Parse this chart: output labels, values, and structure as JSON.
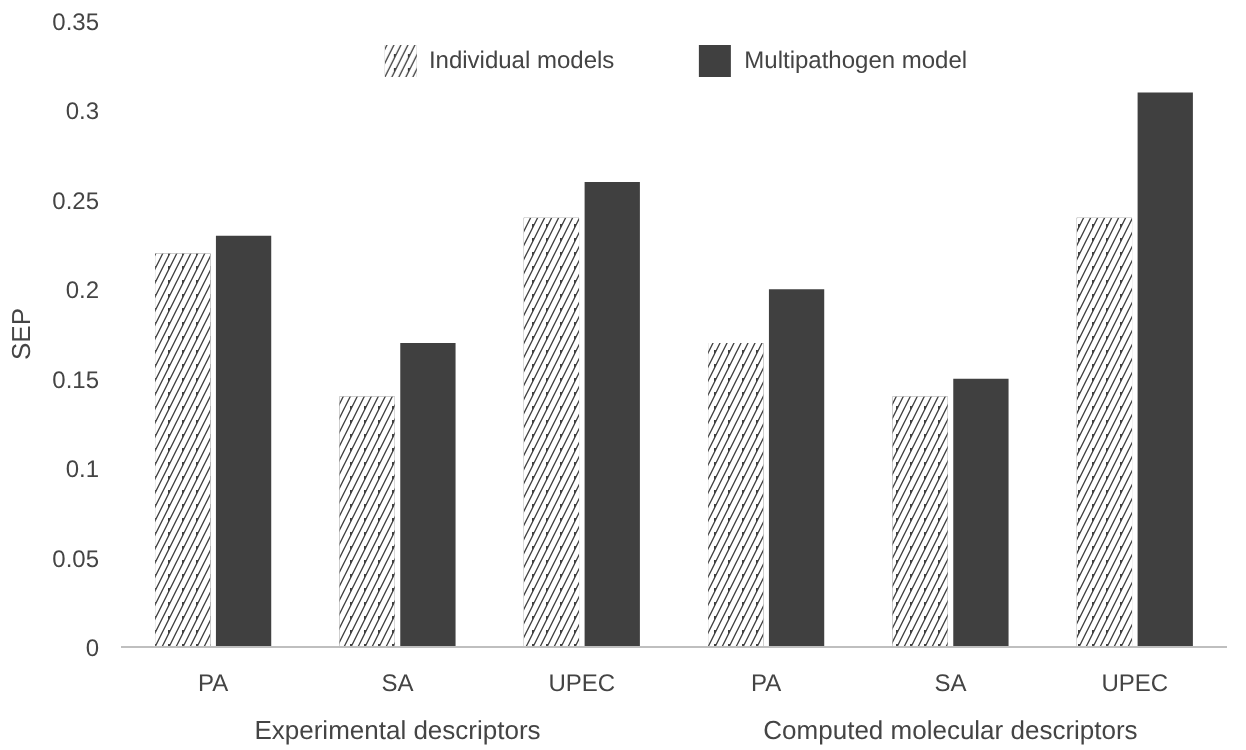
{
  "chart_data": {
    "type": "bar",
    "ylabel": "SEP",
    "categories": [
      "PA",
      "SA",
      "UPEC",
      "PA",
      "SA",
      "UPEC"
    ],
    "series": [
      {
        "name": "Individual models",
        "color": "#404040",
        "values": [
          0.22,
          0.14,
          0.24,
          0.17,
          0.14,
          0.24
        ]
      },
      {
        "name": "Multipathogen model",
        "color": "#404040",
        "values": [
          0.23,
          0.17,
          0.26,
          0.2,
          0.15,
          0.31
        ]
      }
    ],
    "ylim": [
      0,
      0.35
    ],
    "yticks": [
      0,
      0.05,
      0.1,
      0.15,
      0.2,
      0.25,
      0.3,
      0.35
    ],
    "grid": false,
    "legend": "top",
    "annotations": [
      "Experimental descriptors",
      "Computed molecular descriptors"
    ]
  }
}
